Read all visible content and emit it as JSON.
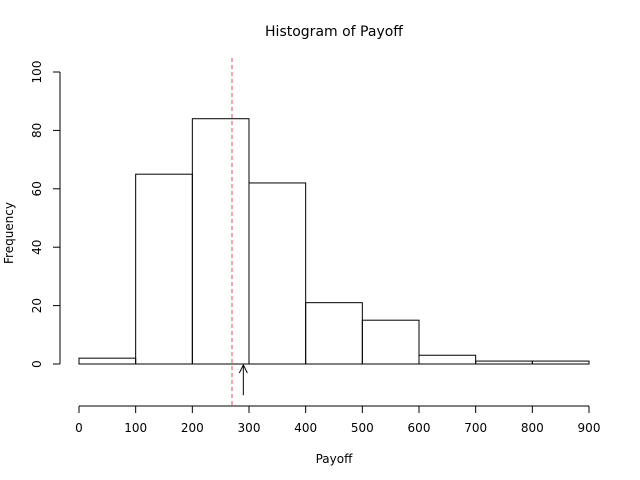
{
  "chart_data": {
    "type": "bar",
    "title": "Histogram of Payoff",
    "xlabel": "Payoff",
    "ylabel": "Frequency",
    "bins": [
      {
        "x0": 0,
        "x1": 100,
        "count": 2
      },
      {
        "x0": 100,
        "x1": 200,
        "count": 65
      },
      {
        "x0": 200,
        "x1": 300,
        "count": 84
      },
      {
        "x0": 300,
        "x1": 400,
        "count": 62
      },
      {
        "x0": 400,
        "x1": 500,
        "count": 21
      },
      {
        "x0": 500,
        "x1": 600,
        "count": 15
      },
      {
        "x0": 600,
        "x1": 700,
        "count": 3
      },
      {
        "x0": 700,
        "x1": 800,
        "count": 1
      },
      {
        "x0": 800,
        "x1": 900,
        "count": 1
      }
    ],
    "xlim": [
      0,
      900
    ],
    "ylim": [
      0,
      100
    ],
    "x_ticks": [
      0,
      100,
      200,
      300,
      400,
      500,
      600,
      700,
      800,
      900
    ],
    "y_ticks": [
      0,
      20,
      40,
      60,
      80,
      100
    ],
    "grid": false,
    "legend": "none",
    "annotations": {
      "vline": {
        "x": 270,
        "color": "#e8495a",
        "style": "dashed"
      },
      "arrow": {
        "x": 290,
        "from_y": -10,
        "to_y": 0,
        "color": "#000000"
      }
    }
  }
}
